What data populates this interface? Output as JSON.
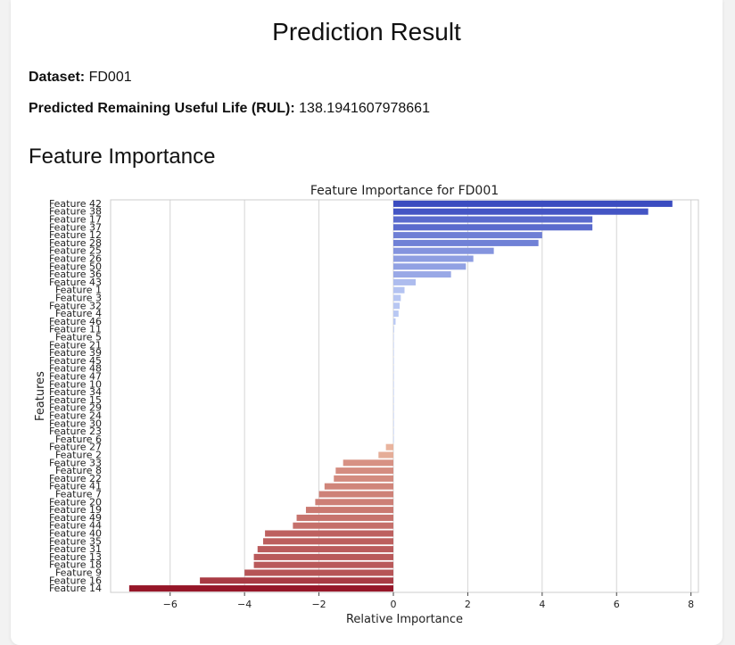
{
  "page": {
    "title": "Prediction Result",
    "dataset_label": "Dataset:",
    "dataset_value": "FD001",
    "rul_label": "Predicted Remaining Useful Life (RUL):",
    "rul_value": "138.1941607978661",
    "section_title": "Feature Importance"
  },
  "chart_data": {
    "type": "bar",
    "orientation": "horizontal",
    "title": "Feature Importance for FD001",
    "xlabel": "Relative Importance",
    "ylabel": "Features",
    "xlim": [
      -7.6,
      8.2
    ],
    "xticks": [
      -6,
      -4,
      -2,
      0,
      2,
      4,
      6,
      8
    ],
    "grid": "vertical",
    "palette": "coolwarm (blue positive, red negative)",
    "categories": [
      "Feature 42",
      "Feature 38",
      "Feature 17",
      "Feature 37",
      "Feature 12",
      "Feature 28",
      "Feature 25",
      "Feature 26",
      "Feature 50",
      "Feature 36",
      "Feature 43",
      "Feature 1",
      "Feature 3",
      "Feature 32",
      "Feature 4",
      "Feature 46",
      "Feature 11",
      "Feature 5",
      "Feature 21",
      "Feature 39",
      "Feature 45",
      "Feature 48",
      "Feature 47",
      "Feature 10",
      "Feature 34",
      "Feature 15",
      "Feature 29",
      "Feature 24",
      "Feature 30",
      "Feature 23",
      "Feature 6",
      "Feature 27",
      "Feature 2",
      "Feature 33",
      "Feature 8",
      "Feature 22",
      "Feature 41",
      "Feature 7",
      "Feature 20",
      "Feature 19",
      "Feature 49",
      "Feature 44",
      "Feature 40",
      "Feature 35",
      "Feature 31",
      "Feature 13",
      "Feature 18",
      "Feature 9",
      "Feature 16",
      "Feature 14"
    ],
    "values": [
      7.5,
      6.85,
      5.35,
      5.35,
      4.0,
      3.9,
      2.7,
      2.15,
      1.95,
      1.55,
      0.6,
      0.3,
      0.2,
      0.17,
      0.14,
      0.06,
      0.02,
      0.01,
      0.0,
      0.0,
      0.0,
      0.0,
      0.0,
      0.0,
      0.0,
      0.0,
      0.0,
      0.0,
      0.0,
      0.0,
      0.0,
      -0.2,
      -0.4,
      -1.35,
      -1.55,
      -1.6,
      -1.85,
      -2.0,
      -2.1,
      -2.35,
      -2.6,
      -2.7,
      -3.45,
      -3.5,
      -3.65,
      -3.75,
      -3.75,
      -4.0,
      -5.2,
      -7.1
    ]
  }
}
